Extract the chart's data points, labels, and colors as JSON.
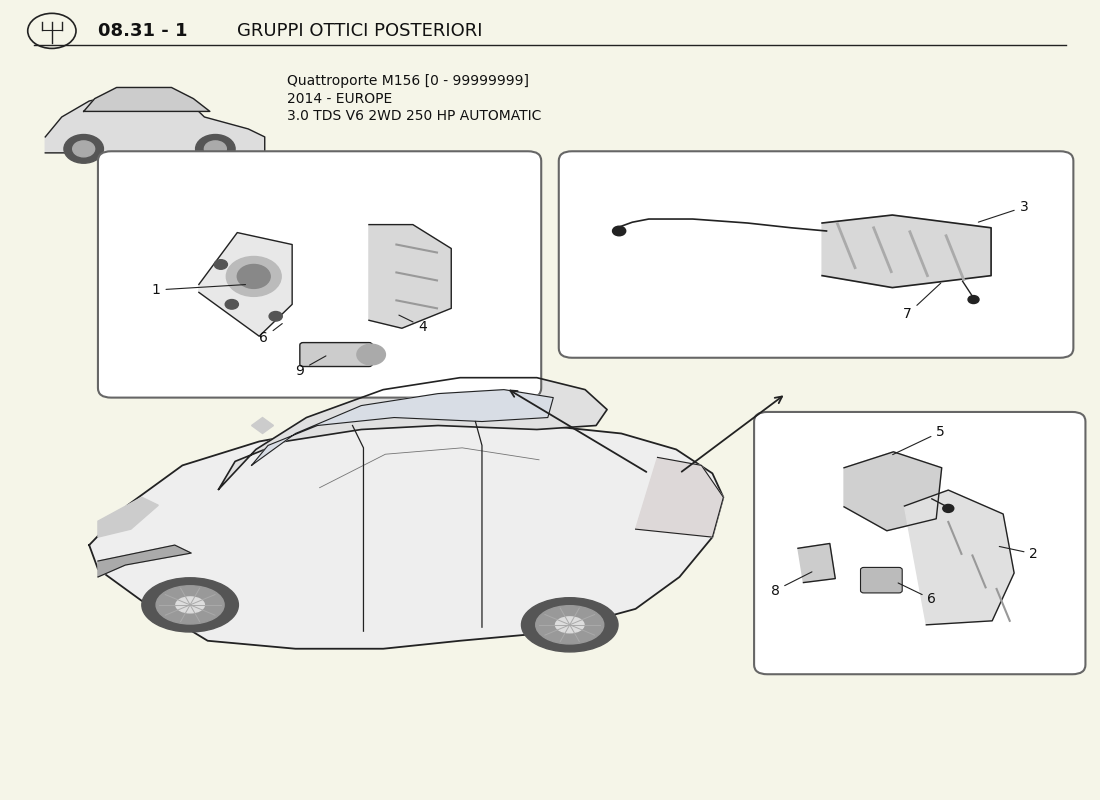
{
  "title_bold": "08.31 - 1",
  "title_text": "GRUPPI OTTICI POSTERIORI",
  "subtitle_line1": "Quattroporte M156 [0 - 99999999]",
  "subtitle_line2": "2014 - EUROPE",
  "subtitle_line3": "3.0 TDS V6 2WD 250 HP AUTOMATIC",
  "background_color": "#f5f5e8",
  "line_color": "#222222",
  "text_color": "#111111"
}
